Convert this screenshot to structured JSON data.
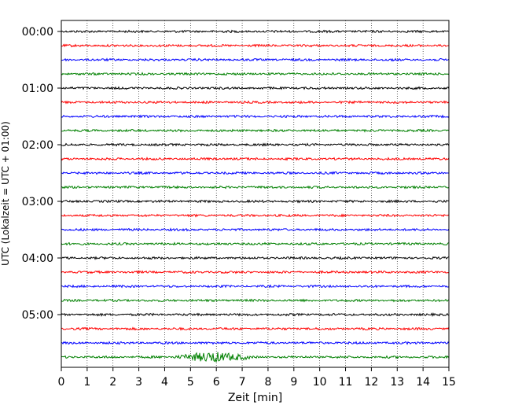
{
  "chart_data": {
    "type": "line",
    "xlabel": "Zeit  [min]",
    "ylabel": "UTC (Lokalzeit = UTC + 01:00)",
    "xlim": [
      0,
      15
    ],
    "x_ticks": [
      "0",
      "1",
      "2",
      "3",
      "4",
      "5",
      "6",
      "7",
      "8",
      "9",
      "10",
      "11",
      "12",
      "13",
      "14",
      "15"
    ],
    "y_tick_labels": [
      "00:00",
      "01:00",
      "02:00",
      "03:00",
      "04:00",
      "05:00"
    ],
    "grid": "vertical-dotted",
    "trace_interval_min": 15,
    "trace_count": 24,
    "trace_colors": [
      "#000000",
      "#ff0000",
      "#0000ff",
      "#008000"
    ],
    "events": [
      {
        "trace_start": "05:45",
        "x_start_min": 3.9,
        "x_end_min": 7.3,
        "peak_min": 5.9,
        "relative_amplitude": 6
      }
    ]
  }
}
